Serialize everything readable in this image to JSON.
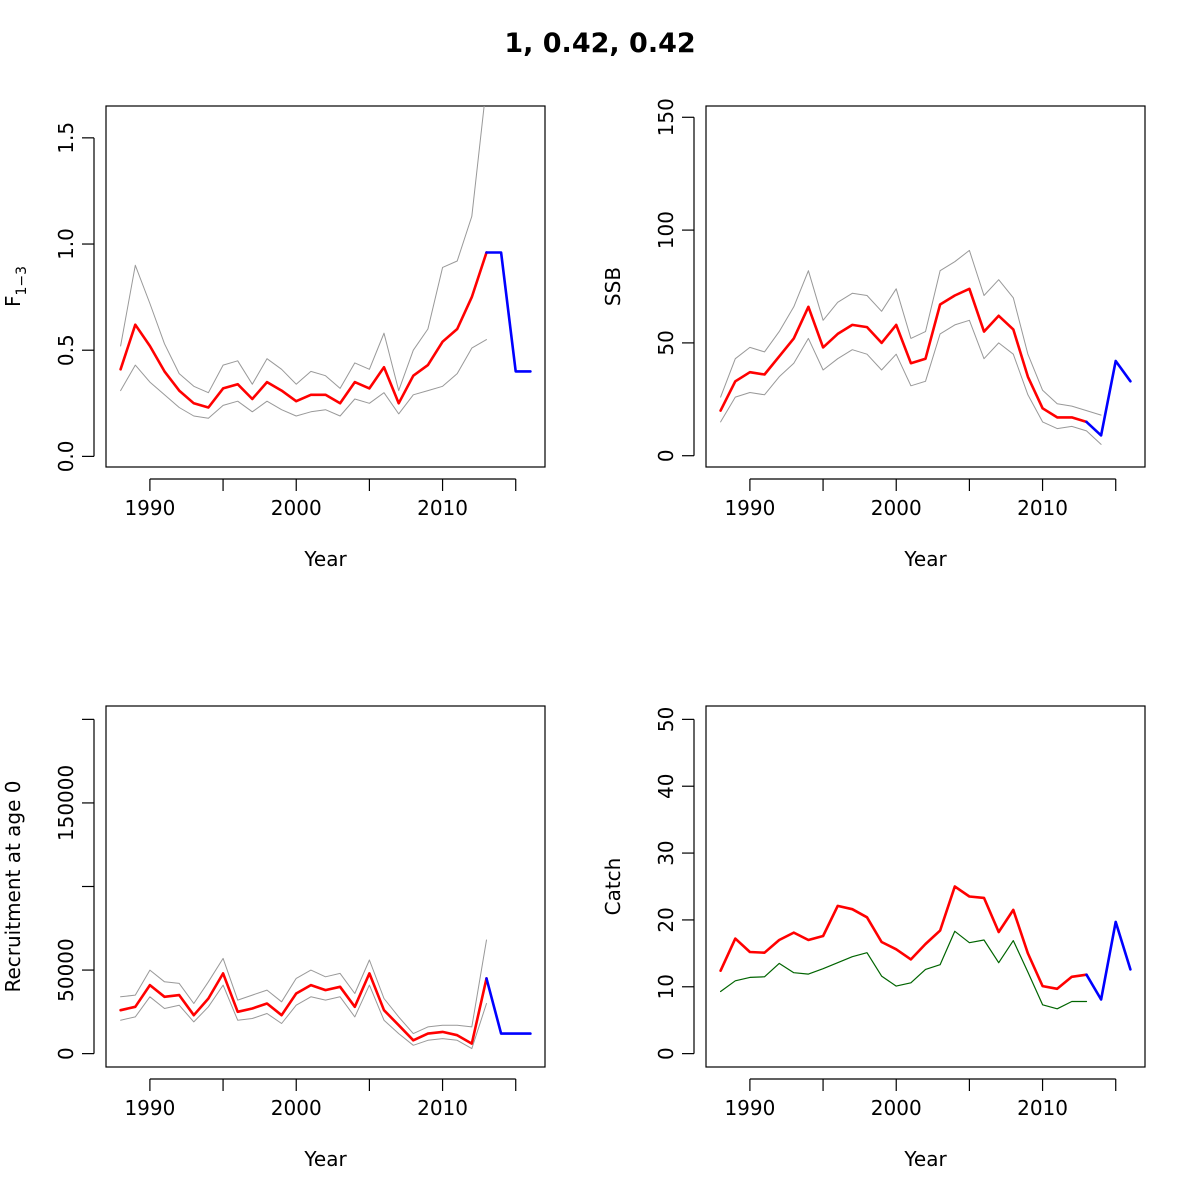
{
  "title": "1, 0.42, 0.42",
  "colors": {
    "estimate": "#ff0000",
    "projection": "#0000ff",
    "ci": "#999999",
    "observed": "#006400"
  },
  "chart_data": [
    {
      "id": "F",
      "type": "line",
      "xlabel": "Year",
      "ylabel": "F",
      "ylabel_sub": "1−3",
      "xlim": [
        1987,
        2017
      ],
      "ylim": [
        -0.05,
        1.65
      ],
      "xticks": [
        1990,
        1995,
        2000,
        2005,
        2010,
        2015
      ],
      "xtick_labels": [
        "1990",
        "",
        "2000",
        "",
        "2010",
        ""
      ],
      "yticks": [
        0,
        0.5,
        1,
        1.5
      ],
      "ytick_labels": [
        "0.0",
        "0.5",
        "1.0",
        "1.5"
      ],
      "series": [
        {
          "role": "upper-ci",
          "style": "ci",
          "x": [
            1988,
            1989,
            1990,
            1991,
            1992,
            1993,
            1994,
            1995,
            1996,
            1997,
            1998,
            1999,
            2000,
            2001,
            2002,
            2003,
            2004,
            2005,
            2006,
            2007,
            2008,
            2009,
            2010,
            2011,
            2012,
            2013
          ],
          "y": [
            0.52,
            0.9,
            0.72,
            0.53,
            0.39,
            0.33,
            0.3,
            0.43,
            0.45,
            0.34,
            0.46,
            0.41,
            0.34,
            0.4,
            0.38,
            0.32,
            0.44,
            0.41,
            0.58,
            0.31,
            0.5,
            0.6,
            0.89,
            0.92,
            1.13,
            1.75
          ]
        },
        {
          "role": "estimate",
          "style": "estimate",
          "x": [
            1988,
            1989,
            1990,
            1991,
            1992,
            1993,
            1994,
            1995,
            1996,
            1997,
            1998,
            1999,
            2000,
            2001,
            2002,
            2003,
            2004,
            2005,
            2006,
            2007,
            2008,
            2009,
            2010,
            2011,
            2012,
            2013
          ],
          "y": [
            0.41,
            0.62,
            0.52,
            0.4,
            0.31,
            0.25,
            0.23,
            0.32,
            0.34,
            0.27,
            0.35,
            0.31,
            0.26,
            0.29,
            0.29,
            0.25,
            0.35,
            0.32,
            0.42,
            0.25,
            0.38,
            0.43,
            0.54,
            0.6,
            0.75,
            0.96
          ]
        },
        {
          "role": "lower-ci",
          "style": "ci",
          "x": [
            1988,
            1989,
            1990,
            1991,
            1992,
            1993,
            1994,
            1995,
            1996,
            1997,
            1998,
            1999,
            2000,
            2001,
            2002,
            2003,
            2004,
            2005,
            2006,
            2007,
            2008,
            2009,
            2010,
            2011,
            2012,
            2013
          ],
          "y": [
            0.31,
            0.43,
            0.35,
            0.29,
            0.23,
            0.19,
            0.18,
            0.24,
            0.26,
            0.21,
            0.26,
            0.22,
            0.19,
            0.21,
            0.22,
            0.19,
            0.27,
            0.25,
            0.3,
            0.2,
            0.29,
            0.31,
            0.33,
            0.39,
            0.51,
            0.55
          ]
        },
        {
          "role": "projection",
          "style": "projection",
          "x": [
            2013,
            2014,
            2015,
            2016
          ],
          "y": [
            0.96,
            0.96,
            0.4,
            0.4
          ]
        }
      ]
    },
    {
      "id": "SSB",
      "type": "line",
      "xlabel": "Year",
      "ylabel": "SSB",
      "xlim": [
        1987,
        2017
      ],
      "ylim": [
        -5,
        155
      ],
      "xticks": [
        1990,
        1995,
        2000,
        2005,
        2010,
        2015
      ],
      "xtick_labels": [
        "1990",
        "",
        "2000",
        "",
        "2010",
        ""
      ],
      "yticks": [
        0,
        50,
        100,
        150
      ],
      "ytick_labels": [
        "0",
        "50",
        "100",
        "150"
      ],
      "series": [
        {
          "role": "upper-ci",
          "style": "ci",
          "x": [
            1988,
            1989,
            1990,
            1991,
            1992,
            1993,
            1994,
            1995,
            1996,
            1997,
            1998,
            1999,
            2000,
            2001,
            2002,
            2003,
            2004,
            2005,
            2006,
            2007,
            2008,
            2009,
            2010,
            2011,
            2012,
            2013,
            2014
          ],
          "y": [
            26,
            43,
            48,
            46,
            55,
            66,
            82,
            60,
            68,
            72,
            71,
            64,
            74,
            52,
            55,
            82,
            86,
            91,
            71,
            78,
            70,
            45,
            29,
            23,
            22,
            20,
            18
          ]
        },
        {
          "role": "estimate",
          "style": "estimate",
          "x": [
            1988,
            1989,
            1990,
            1991,
            1992,
            1993,
            1994,
            1995,
            1996,
            1997,
            1998,
            1999,
            2000,
            2001,
            2002,
            2003,
            2004,
            2005,
            2006,
            2007,
            2008,
            2009,
            2010,
            2011,
            2012,
            2013
          ],
          "y": [
            20,
            33,
            37,
            36,
            44,
            52,
            66,
            48,
            54,
            58,
            57,
            50,
            58,
            41,
            43,
            67,
            71,
            74,
            55,
            62,
            56,
            35,
            21,
            17,
            17,
            15
          ]
        },
        {
          "role": "lower-ci",
          "style": "ci",
          "x": [
            1988,
            1989,
            1990,
            1991,
            1992,
            1993,
            1994,
            1995,
            1996,
            1997,
            1998,
            1999,
            2000,
            2001,
            2002,
            2003,
            2004,
            2005,
            2006,
            2007,
            2008,
            2009,
            2010,
            2011,
            2012,
            2013,
            2014
          ],
          "y": [
            15,
            26,
            28,
            27,
            35,
            41,
            52,
            38,
            43,
            47,
            45,
            38,
            45,
            31,
            33,
            54,
            58,
            60,
            43,
            50,
            45,
            27,
            15,
            12,
            13,
            11,
            5
          ]
        },
        {
          "role": "projection",
          "style": "projection",
          "x": [
            2013,
            2014,
            2015,
            2016
          ],
          "y": [
            15,
            9,
            42,
            33
          ]
        }
      ]
    },
    {
      "id": "Recruitment",
      "type": "line",
      "xlabel": "Year",
      "ylabel": "Recruitment at age 0",
      "xlim": [
        1987,
        2017
      ],
      "ylim": [
        -8000,
        208000
      ],
      "xticks": [
        1990,
        1995,
        2000,
        2005,
        2010,
        2015
      ],
      "xtick_labels": [
        "1990",
        "",
        "2000",
        "",
        "2010",
        ""
      ],
      "yticks": [
        0,
        50000,
        100000,
        150000,
        200000
      ],
      "ytick_labels": [
        "0",
        "50000",
        "",
        "150000",
        ""
      ],
      "series": [
        {
          "role": "upper-ci",
          "style": "ci",
          "x": [
            1988,
            1989,
            1990,
            1991,
            1992,
            1993,
            1994,
            1995,
            1996,
            1997,
            1998,
            1999,
            2000,
            2001,
            2002,
            2003,
            2004,
            2005,
            2006,
            2007,
            2008,
            2009,
            2010,
            2011,
            2012,
            2013
          ],
          "y": [
            34000,
            35000,
            50000,
            43000,
            42000,
            30000,
            43000,
            57000,
            32000,
            35000,
            38000,
            31000,
            45000,
            50000,
            46000,
            48000,
            36000,
            56000,
            33000,
            22000,
            12000,
            16000,
            17000,
            17000,
            16000,
            68000
          ]
        },
        {
          "role": "estimate",
          "style": "estimate",
          "x": [
            1988,
            1989,
            1990,
            1991,
            1992,
            1993,
            1994,
            1995,
            1996,
            1997,
            1998,
            1999,
            2000,
            2001,
            2002,
            2003,
            2004,
            2005,
            2006,
            2007,
            2008,
            2009,
            2010,
            2011,
            2012,
            2013
          ],
          "y": [
            26000,
            28000,
            41000,
            34000,
            35000,
            23000,
            33000,
            48000,
            25000,
            27000,
            30000,
            23000,
            36000,
            41000,
            38000,
            40000,
            28000,
            48000,
            26000,
            17000,
            8000,
            12000,
            13000,
            11000,
            6000,
            45000
          ]
        },
        {
          "role": "lower-ci",
          "style": "ci",
          "x": [
            1988,
            1989,
            1990,
            1991,
            1992,
            1993,
            1994,
            1995,
            1996,
            1997,
            1998,
            1999,
            2000,
            2001,
            2002,
            2003,
            2004,
            2005,
            2006,
            2007,
            2008,
            2009,
            2010,
            2011,
            2012,
            2013
          ],
          "y": [
            20000,
            22000,
            34000,
            27000,
            29000,
            19000,
            28000,
            41000,
            20000,
            21000,
            24000,
            18000,
            29000,
            34000,
            32000,
            34000,
            22000,
            41000,
            20000,
            12000,
            5000,
            8000,
            9000,
            8000,
            3000,
            30000
          ]
        },
        {
          "role": "projection",
          "style": "projection",
          "x": [
            2013,
            2014,
            2015,
            2016
          ],
          "y": [
            45000,
            12000,
            12000,
            12000
          ]
        }
      ]
    },
    {
      "id": "Catch",
      "type": "line",
      "xlabel": "Year",
      "ylabel": "Catch",
      "xlim": [
        1987,
        2017
      ],
      "ylim": [
        -2,
        52
      ],
      "xticks": [
        1990,
        1995,
        2000,
        2005,
        2010,
        2015
      ],
      "xtick_labels": [
        "1990",
        "",
        "2000",
        "",
        "2010",
        ""
      ],
      "yticks": [
        0,
        10,
        20,
        30,
        40,
        50
      ],
      "ytick_labels": [
        "0",
        "10",
        "20",
        "30",
        "40",
        "50"
      ],
      "series": [
        {
          "role": "observed",
          "style": "observed",
          "x": [
            1988,
            1989,
            1990,
            1991,
            1992,
            1993,
            1994,
            1995,
            1996,
            1997,
            1998,
            1999,
            2000,
            2001,
            2002,
            2003,
            2004,
            2005,
            2006,
            2007,
            2008,
            2009,
            2010,
            2011,
            2012,
            2013
          ],
          "y": [
            9.3,
            10.9,
            11.4,
            11.5,
            13.5,
            12.1,
            11.9,
            12.7,
            13.6,
            14.5,
            15.1,
            11.6,
            10.1,
            10.6,
            12.6,
            13.3,
            18.3,
            16.6,
            17.0,
            13.6,
            16.9,
            12.2,
            7.3,
            6.7,
            7.8,
            7.8
          ]
        },
        {
          "role": "estimate",
          "style": "estimate",
          "x": [
            1988,
            1989,
            1990,
            1991,
            1992,
            1993,
            1994,
            1995,
            1996,
            1997,
            1998,
            1999,
            2000,
            2001,
            2002,
            2003,
            2004,
            2005,
            2006,
            2007,
            2008,
            2009,
            2010,
            2011,
            2012,
            2013
          ],
          "y": [
            12.4,
            17.2,
            15.2,
            15.1,
            17.0,
            18.1,
            17.0,
            17.6,
            22.1,
            21.6,
            20.4,
            16.7,
            15.6,
            14.1,
            16.4,
            18.4,
            25.0,
            23.5,
            23.3,
            18.2,
            21.5,
            15.0,
            10.1,
            9.7,
            11.5,
            11.8
          ]
        },
        {
          "role": "projection",
          "style": "projection",
          "x": [
            2013,
            2014,
            2015,
            2016
          ],
          "y": [
            11.8,
            8.1,
            19.7,
            12.6
          ]
        }
      ]
    }
  ]
}
